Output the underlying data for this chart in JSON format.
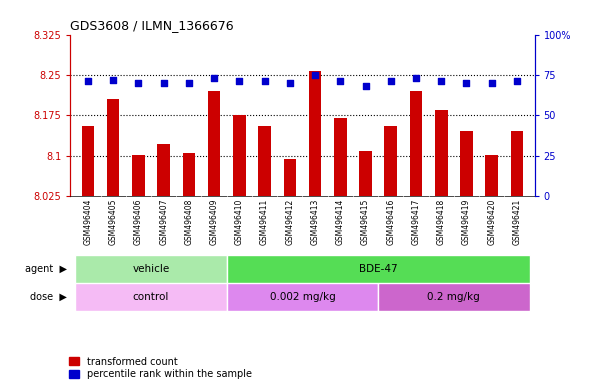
{
  "title": "GDS3608 / ILMN_1366676",
  "samples": [
    "GSM496404",
    "GSM496405",
    "GSM496406",
    "GSM496407",
    "GSM496408",
    "GSM496409",
    "GSM496410",
    "GSM496411",
    "GSM496412",
    "GSM496413",
    "GSM496414",
    "GSM496415",
    "GSM496416",
    "GSM496417",
    "GSM496418",
    "GSM496419",
    "GSM496420",
    "GSM496421"
  ],
  "red_values": [
    8.155,
    8.205,
    8.101,
    8.122,
    8.105,
    8.22,
    8.175,
    8.155,
    8.093,
    8.258,
    8.17,
    8.108,
    8.155,
    8.22,
    8.185,
    8.145,
    8.101,
    8.145
  ],
  "blue_values": [
    71,
    72,
    70,
    70,
    70,
    73,
    71,
    71,
    70,
    75,
    71,
    68,
    71,
    73,
    71,
    70,
    70,
    71
  ],
  "ylim_left": [
    8.025,
    8.325
  ],
  "ylim_right": [
    0,
    100
  ],
  "yticks_left": [
    8.025,
    8.1,
    8.175,
    8.25,
    8.325
  ],
  "yticks_right": [
    0,
    25,
    50,
    75,
    100
  ],
  "ytick_labels_left": [
    "8.025",
    "8.1",
    "8.175",
    "8.25",
    "8.325"
  ],
  "ytick_labels_right": [
    "0",
    "25",
    "50",
    "75",
    "100%"
  ],
  "hlines": [
    8.1,
    8.175,
    8.25
  ],
  "bar_color": "#cc0000",
  "dot_color": "#0000cc",
  "bar_width": 0.5,
  "agent_labels": [
    {
      "label": "vehicle",
      "start": 0,
      "end": 5,
      "color": "#aaeaaa"
    },
    {
      "label": "BDE-47",
      "start": 6,
      "end": 17,
      "color": "#55dd55"
    }
  ],
  "dose_labels": [
    {
      "label": "control",
      "start": 0,
      "end": 5,
      "color": "#f5bbf5"
    },
    {
      "label": "0.002 mg/kg",
      "start": 6,
      "end": 11,
      "color": "#dd88ee"
    },
    {
      "label": "0.2 mg/kg",
      "start": 12,
      "end": 17,
      "color": "#cc66cc"
    }
  ],
  "legend_red": "transformed count",
  "legend_blue": "percentile rank within the sample",
  "bar_color_legend": "#cc0000",
  "dot_color_legend": "#0000cc",
  "left_color": "#cc0000",
  "right_color": "#0000cc",
  "sample_bg": "#d8d8d8",
  "plot_bg": "#ffffff"
}
